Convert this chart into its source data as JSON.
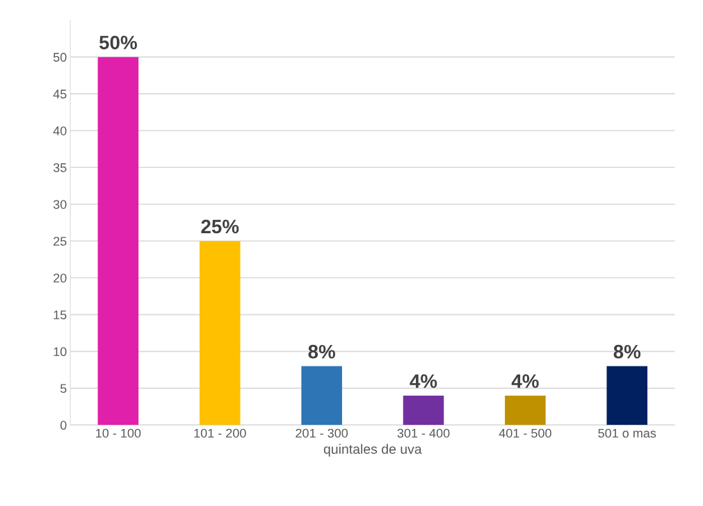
{
  "chart_data": {
    "type": "bar",
    "xlabel": "quintales de uva",
    "categories": [
      "10 - 100",
      "101 - 200",
      "201 - 300",
      "301 - 400",
      "401 - 500",
      "501 o mas"
    ],
    "values": [
      50,
      25,
      8,
      4,
      4,
      8
    ],
    "colors": [
      "#e020aa",
      "#ffc000",
      "#2e75b6",
      "#7030a0",
      "#bf9000",
      "#002060"
    ],
    "value_labels": [
      "50%",
      "25%",
      "8%",
      "4%",
      "4%",
      "8%"
    ],
    "ylim": [
      0,
      55
    ],
    "yticks": [
      0,
      5,
      10,
      15,
      20,
      25,
      30,
      35,
      40,
      45,
      50
    ],
    "grid": "y"
  }
}
